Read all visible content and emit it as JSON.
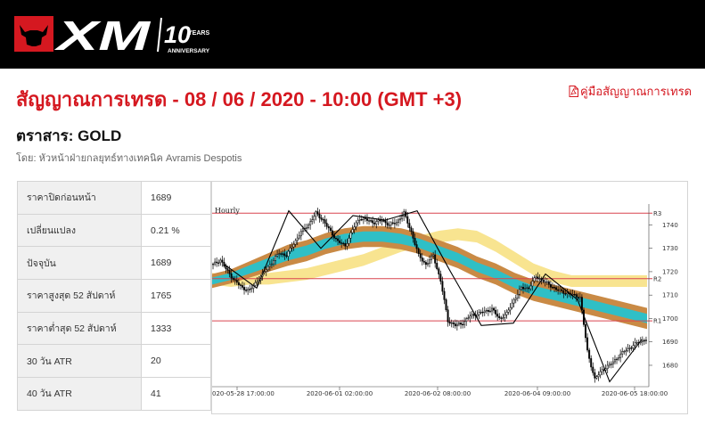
{
  "brand": {
    "logo_text": "XM",
    "anniversary_number": "10",
    "anniversary_years": "YEARS",
    "anniversary_label": "ANNIVERSARY"
  },
  "header": {
    "title": "สัญญาณการเทรด - 08 / 06 / 2020 - 10:00 (GMT +3)",
    "guide_link": "คู่มือสัญญาณการเทรด",
    "instrument": "ตราสาร: GOLD",
    "byline": "โดย: หัวหน้าฝ่ายกลยุทธ์ทางเทคนิค Avramis Despotis"
  },
  "stats": [
    {
      "label": "ราคาปิดก่อนหน้า",
      "value": "1689"
    },
    {
      "label": "เปลี่ยนแปลง",
      "value": "0.21 %"
    },
    {
      "label": "ปัจจุบัน",
      "value": "1689"
    },
    {
      "label": "ราคาสูงสุด 52 สัปดาห์",
      "value": "1765"
    },
    {
      "label": "ราคาต่ำสุด 52 สัปดาห์",
      "value": "1333"
    },
    {
      "label": "30 วัน ATR",
      "value": "20"
    },
    {
      "label": "40 วัน ATR",
      "value": "41"
    }
  ],
  "colors": {
    "brand_red": "#d51820",
    "band_teal": "#2fbfc6",
    "band_brown": "#c98a45",
    "band_yellow": "#f8e38a",
    "level_line": "#d9444f"
  },
  "chart_data": {
    "type": "candlestick",
    "timeframe": "Hourly",
    "ylim": [
      1672,
      1747
    ],
    "y_ticks": [
      1680,
      1690,
      1700,
      1710,
      1720,
      1730,
      1740
    ],
    "x_ticks": [
      "2020-05-28 17:00:00",
      "2020-06-01 02:00:00",
      "2020-06-02 08:00:00",
      "2020-06-04 09:00:00",
      "2020-06-05 18:00:00"
    ],
    "levels": [
      {
        "name": "R3",
        "value": 1745
      },
      {
        "name": "R2",
        "value": 1717
      },
      {
        "name": "R1",
        "value": 1699
      }
    ],
    "price_path": [
      1723,
      1725,
      1720,
      1716,
      1713,
      1712,
      1716,
      1720,
      1724,
      1728,
      1727,
      1732,
      1737,
      1740,
      1745,
      1742,
      1737,
      1733,
      1731,
      1738,
      1743,
      1742,
      1741,
      1742,
      1740,
      1741,
      1745,
      1737,
      1727,
      1723,
      1727,
      1716,
      1699,
      1697,
      1698,
      1701,
      1702,
      1703,
      1704,
      1700,
      1702,
      1708,
      1713,
      1713,
      1718,
      1716,
      1714,
      1712,
      1711,
      1710,
      1709,
      1686,
      1674,
      1678,
      1680,
      1683,
      1686,
      1688,
      1690,
      1691
    ],
    "zigzag": [
      1723,
      1713,
      1746,
      1730,
      1744,
      1742,
      1746,
      1721,
      1697,
      1698,
      1719,
      1708,
      1673,
      1691
    ],
    "bands": {
      "teal": {
        "center": [
          1716,
          1718,
          1721,
          1724,
          1727,
          1729,
          1732,
          1734,
          1735,
          1735,
          1734,
          1732,
          1729,
          1726,
          1722,
          1719,
          1715,
          1712,
          1710,
          1708,
          1706,
          1704,
          1702,
          1700
        ],
        "halfwidth": [
          1.5,
          1.5,
          1.8,
          2,
          2.2,
          2.2,
          2.2,
          2.2,
          2.2,
          2.2,
          2.2,
          2,
          2,
          2,
          2,
          2,
          2,
          2,
          2,
          2,
          2,
          2,
          2,
          2
        ]
      },
      "brown": {
        "center": [
          1716,
          1718,
          1721,
          1724,
          1727,
          1729,
          1732,
          1734,
          1735,
          1735,
          1734,
          1732,
          1729,
          1726,
          1722,
          1719,
          1715,
          1712,
          1710,
          1708,
          1706,
          1704,
          1702,
          1700
        ],
        "halfwidth": [
          3,
          3,
          3.5,
          4,
          4.5,
          4.5,
          4.5,
          4.5,
          4.5,
          4.5,
          4.5,
          4.5,
          4.5,
          4.5,
          4.5,
          4.5,
          4.5,
          4.5,
          4.5,
          4.5,
          4.5,
          4.5,
          4.5,
          4.5
        ]
      },
      "yellow": {
        "center": [
          1717,
          1716,
          1717,
          1717,
          1718,
          1719,
          1721,
          1723,
          1725,
          1728,
          1731,
          1733,
          1735,
          1736,
          1735,
          1731,
          1726,
          1721,
          1718,
          1716,
          1716,
          1716,
          1716,
          1716
        ],
        "halfwidth": [
          2.5,
          2.5,
          2.5,
          2.5,
          2.5,
          2.5,
          2.5,
          2.5,
          2.5,
          2.5,
          2.5,
          2.5,
          2.5,
          2.5,
          2.5,
          2.5,
          2.5,
          2.5,
          2.5,
          2.5,
          2.5,
          2.5,
          2.5,
          2.5
        ]
      }
    }
  }
}
